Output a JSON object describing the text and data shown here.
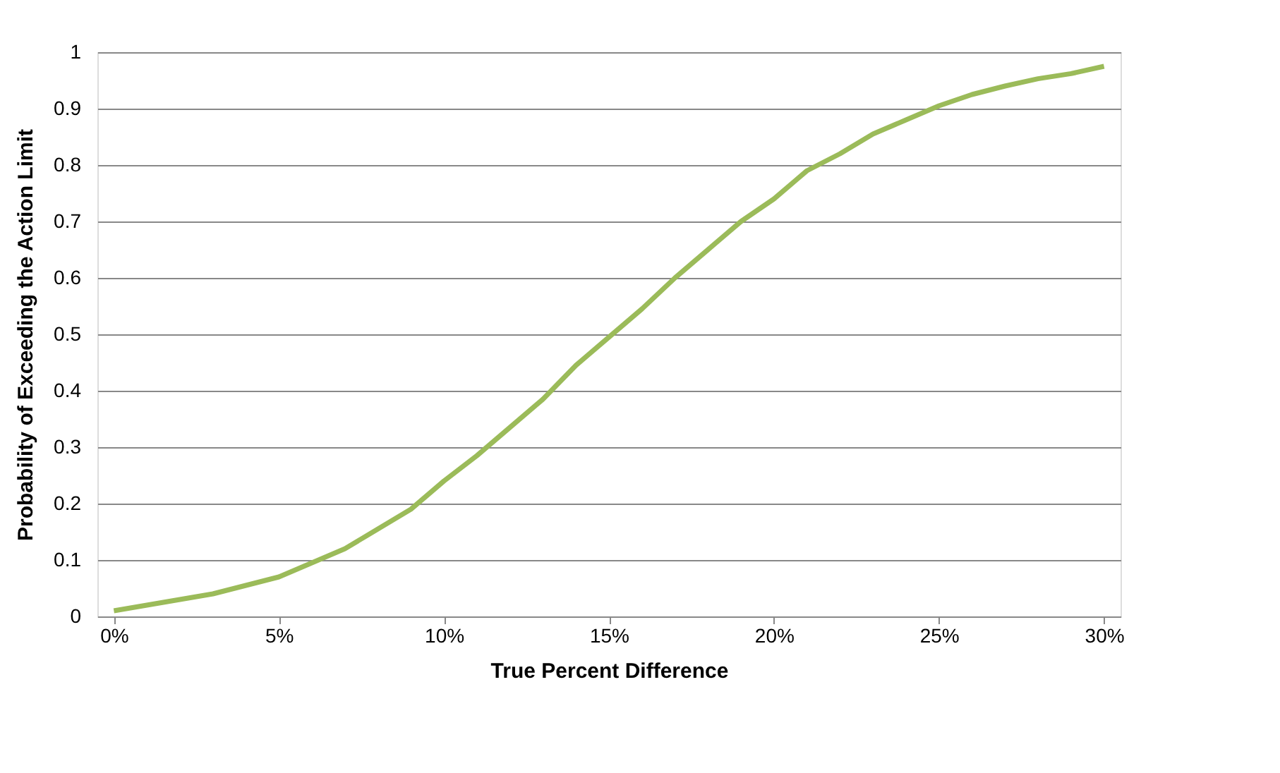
{
  "chart_data": {
    "type": "line",
    "xlabel": "True Percent Difference",
    "ylabel": "Probability of Exceeding the Action Limit",
    "x": [
      0,
      1,
      2,
      3,
      4,
      5,
      6,
      7,
      8,
      9,
      10,
      11,
      12,
      13,
      14,
      15,
      16,
      17,
      18,
      19,
      20,
      21,
      22,
      23,
      24,
      25,
      26,
      27,
      28,
      29,
      30
    ],
    "series": [
      {
        "color": "#9bbb59",
        "values": [
          0.01,
          0.02,
          0.03,
          0.04,
          0.055,
          0.07,
          0.095,
          0.12,
          0.155,
          0.19,
          0.24,
          0.285,
          0.335,
          0.385,
          0.445,
          0.495,
          0.545,
          0.6,
          0.65,
          0.7,
          0.74,
          0.79,
          0.82,
          0.855,
          0.88,
          0.905,
          0.925,
          0.94,
          0.953,
          0.962,
          0.975
        ]
      }
    ],
    "xlim": [
      -0.5,
      30.5
    ],
    "xticks": [
      {
        "value": 0,
        "label": "0%"
      },
      {
        "value": 5,
        "label": "5%"
      },
      {
        "value": 10,
        "label": "10%"
      },
      {
        "value": 15,
        "label": "15%"
      },
      {
        "value": 20,
        "label": "20%"
      },
      {
        "value": 25,
        "label": "25%"
      },
      {
        "value": 30,
        "label": "30%"
      }
    ],
    "ylim": [
      0,
      1
    ],
    "yticks": [
      0,
      0.1,
      0.2,
      0.3,
      0.4,
      0.5,
      0.6,
      0.7,
      0.8,
      0.9,
      1
    ],
    "grid": "y",
    "legend": false,
    "marker": "none",
    "line_style": "solid"
  }
}
